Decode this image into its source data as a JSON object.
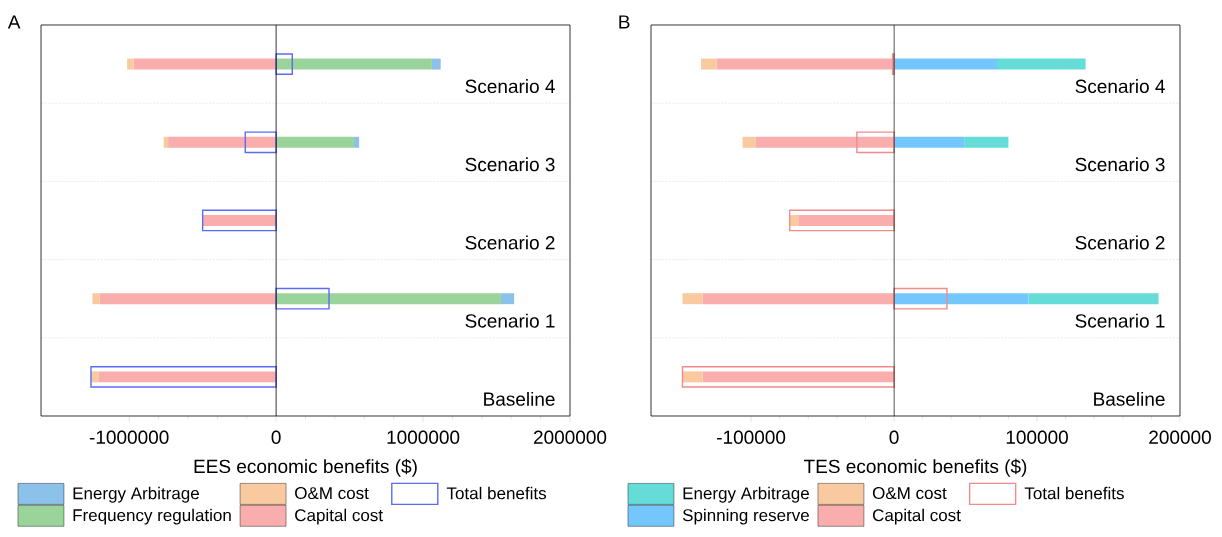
{
  "chart_data": [
    {
      "type": "bar",
      "orientation": "horizontal",
      "title": "A",
      "xlabel": "EES economic benefits ($)",
      "categories": [
        "Scenario 4",
        "Scenario 3",
        "Scenario 2",
        "Scenario 1",
        "Baseline"
      ],
      "xlim": [
        -1600000,
        2000000
      ],
      "xticks": [
        -1000000,
        0,
        1000000,
        2000000
      ],
      "grid": "y",
      "legend": "bottom",
      "ref_lines": [
        {
          "axis": "x",
          "value": 0,
          "color": "#000000"
        }
      ],
      "series": [
        {
          "name": "Capital cost",
          "color": "#f9adad",
          "base": [
            0,
            0,
            0,
            0,
            0
          ],
          "values": [
            -970000,
            -735000,
            -500000,
            -1200000,
            -1210000
          ]
        },
        {
          "name": "O&M cost",
          "color": "#f9c9a0",
          "base": [
            -970000,
            -735000,
            null,
            -1200000,
            -1210000
          ],
          "values": [
            -44000,
            -30000,
            null,
            -50000,
            -50000
          ]
        },
        {
          "name": "Frequency regulation",
          "color": "#9ad49a",
          "base": [
            0,
            0,
            null,
            0,
            null
          ],
          "values": [
            1060000,
            530000,
            null,
            1530000,
            null
          ]
        },
        {
          "name": "Energy Arbitrage",
          "color": "#8cc2ea",
          "base": [
            1060000,
            530000,
            null,
            1530000,
            null
          ],
          "values": [
            60000,
            35000,
            null,
            90000,
            null
          ]
        },
        {
          "name": "Total benefits",
          "color": "#5a6cf5",
          "base": [
            0,
            0,
            0,
            0,
            0
          ],
          "values": [
            110000,
            -210000,
            -500000,
            360000,
            -1260000
          ]
        }
      ]
    },
    {
      "type": "bar",
      "orientation": "horizontal",
      "title": "B",
      "xlabel": "TES economic benefits ($)",
      "categories": [
        "Scenario 4",
        "Scenario 3",
        "Scenario 2",
        "Scenario 1",
        "Baseline"
      ],
      "xlim": [
        -170000,
        200000
      ],
      "xticks": [
        -100000,
        0,
        100000,
        200000
      ],
      "grid": "y",
      "legend": "bottom",
      "ref_lines": [
        {
          "axis": "x",
          "value": 0,
          "color": "#000000"
        }
      ],
      "series": [
        {
          "name": "Capital cost",
          "color": "#f9adad",
          "base": [
            0,
            0,
            0,
            0,
            0
          ],
          "values": [
            -124000,
            -97000,
            -67000,
            -134000,
            -134000
          ]
        },
        {
          "name": "O&M cost",
          "color": "#f9c9a0",
          "base": [
            -124000,
            -97000,
            -67000,
            -134000,
            -134000
          ],
          "values": [
            -11000,
            -9000,
            -6000,
            -14000,
            -14000
          ]
        },
        {
          "name": "Spinning reserve",
          "color": "#73c7fc",
          "base": [
            0,
            0,
            null,
            0,
            null
          ],
          "values": [
            72000,
            49000,
            null,
            94000,
            null
          ]
        },
        {
          "name": "Energy Arbitrage",
          "color": "#66dcd9",
          "base": [
            72000,
            49000,
            null,
            94000,
            null
          ],
          "values": [
            62000,
            31000,
            null,
            91000,
            null
          ]
        },
        {
          "name": "Total benefits",
          "color": "#f28b8b",
          "base": [
            0,
            0,
            0,
            0,
            0
          ],
          "values": [
            -1000,
            -26000,
            -73000,
            37000,
            -148000
          ]
        }
      ]
    }
  ]
}
